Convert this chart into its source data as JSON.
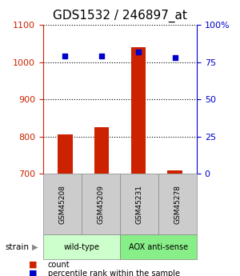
{
  "title": "GDS1532 / 246897_at",
  "samples": [
    "GSM45208",
    "GSM45209",
    "GSM45231",
    "GSM45278"
  ],
  "counts": [
    805,
    825,
    1040,
    710
  ],
  "percentiles": [
    79,
    79,
    82,
    78
  ],
  "ylim_left": [
    700,
    1100
  ],
  "ylim_right": [
    0,
    100
  ],
  "yticks_left": [
    700,
    800,
    900,
    1000,
    1100
  ],
  "yticks_right": [
    0,
    25,
    50,
    75,
    100
  ],
  "yticklabels_right": [
    "0",
    "25",
    "50",
    "75",
    "100%"
  ],
  "bar_color": "#cc2200",
  "marker_color": "#0000cc",
  "groups": [
    {
      "label": "wild-type",
      "indices": [
        0,
        1
      ],
      "color": "#ccffcc"
    },
    {
      "label": "AOX anti-sense",
      "indices": [
        2,
        3
      ],
      "color": "#88ee88"
    }
  ],
  "group_box_color": "#cccccc",
  "legend_count_label": "count",
  "legend_pct_label": "percentile rank within the sample",
  "strain_label": "strain",
  "background_color": "#ffffff",
  "grid_color": "#000000",
  "title_fontsize": 11,
  "tick_fontsize": 8,
  "label_fontsize": 8
}
